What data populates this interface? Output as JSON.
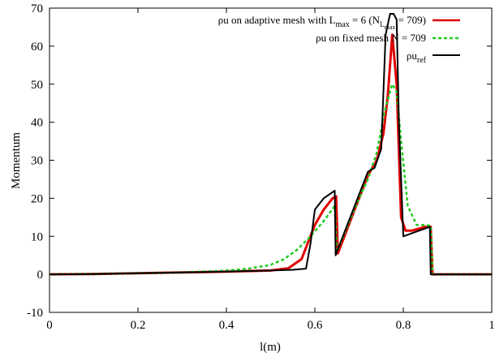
{
  "chart_data": {
    "type": "line",
    "xlabel": "l(m)",
    "ylabel": "Momentum",
    "xlim": [
      0,
      1
    ],
    "ylim": [
      -10,
      70
    ],
    "xticks": [
      0,
      0.2,
      0.4,
      0.6,
      0.8,
      1
    ],
    "xtick_labels": [
      "0",
      "0.2",
      "0.4",
      "0.6",
      "0.8",
      "1"
    ],
    "yticks": [
      -10,
      0,
      10,
      20,
      30,
      40,
      50,
      60,
      70
    ],
    "ytick_labels": [
      "-10",
      "0",
      "10",
      "20",
      "30",
      "40",
      "50",
      "60",
      "70"
    ],
    "grid": false,
    "legend_position": "top-right",
    "series": [
      {
        "name": "ρu on adaptive mesh with L_max = 6 (N_L_max = 709)",
        "color": "#e00000",
        "dash": "solid",
        "x": [
          0,
          0.1,
          0.2,
          0.3,
          0.4,
          0.5,
          0.54,
          0.57,
          0.6,
          0.62,
          0.64,
          0.648,
          0.652,
          0.7,
          0.72,
          0.74,
          0.755,
          0.765,
          0.775,
          0.785,
          0.795,
          0.805,
          0.82,
          0.85,
          0.862,
          0.866,
          1
        ],
        "y": [
          0,
          0.1,
          0.3,
          0.5,
          0.7,
          1.0,
          1.6,
          4,
          13,
          17,
          20,
          20.5,
          5.5,
          20,
          26,
          30,
          37,
          47,
          63,
          50,
          15,
          11.5,
          11.5,
          12.5,
          12.5,
          0,
          0
        ]
      },
      {
        "name": "ρu on fixed mesh N = 709",
        "color": "#22cc22",
        "dash": "dashed",
        "x": [
          0,
          0.1,
          0.2,
          0.3,
          0.4,
          0.45,
          0.5,
          0.53,
          0.56,
          0.59,
          0.62,
          0.645,
          0.65,
          0.7,
          0.72,
          0.74,
          0.76,
          0.775,
          0.785,
          0.795,
          0.81,
          0.83,
          0.85,
          0.862,
          0.866,
          1
        ],
        "y": [
          0,
          0.1,
          0.3,
          0.5,
          1.0,
          1.5,
          2.5,
          4,
          6.5,
          10,
          14,
          18,
          6,
          20,
          25,
          32,
          44,
          50,
          48,
          35,
          18,
          13,
          13,
          12.8,
          0,
          0
        ]
      },
      {
        "name": "ρu_ref",
        "color": "#000000",
        "dash": "solid",
        "x": [
          0,
          0.1,
          0.2,
          0.3,
          0.4,
          0.5,
          0.55,
          0.58,
          0.59,
          0.6,
          0.62,
          0.645,
          0.647,
          0.65,
          0.7,
          0.72,
          0.735,
          0.75,
          0.76,
          0.77,
          0.778,
          0.785,
          0.79,
          0.8,
          0.86,
          0.862,
          1
        ],
        "y": [
          0,
          0.1,
          0.3,
          0.5,
          0.7,
          1.0,
          1.2,
          1.5,
          8,
          17,
          20,
          22,
          5,
          6,
          21,
          27,
          28,
          33,
          63,
          68.5,
          68.5,
          67,
          40,
          10,
          12.5,
          0,
          0
        ]
      }
    ]
  }
}
